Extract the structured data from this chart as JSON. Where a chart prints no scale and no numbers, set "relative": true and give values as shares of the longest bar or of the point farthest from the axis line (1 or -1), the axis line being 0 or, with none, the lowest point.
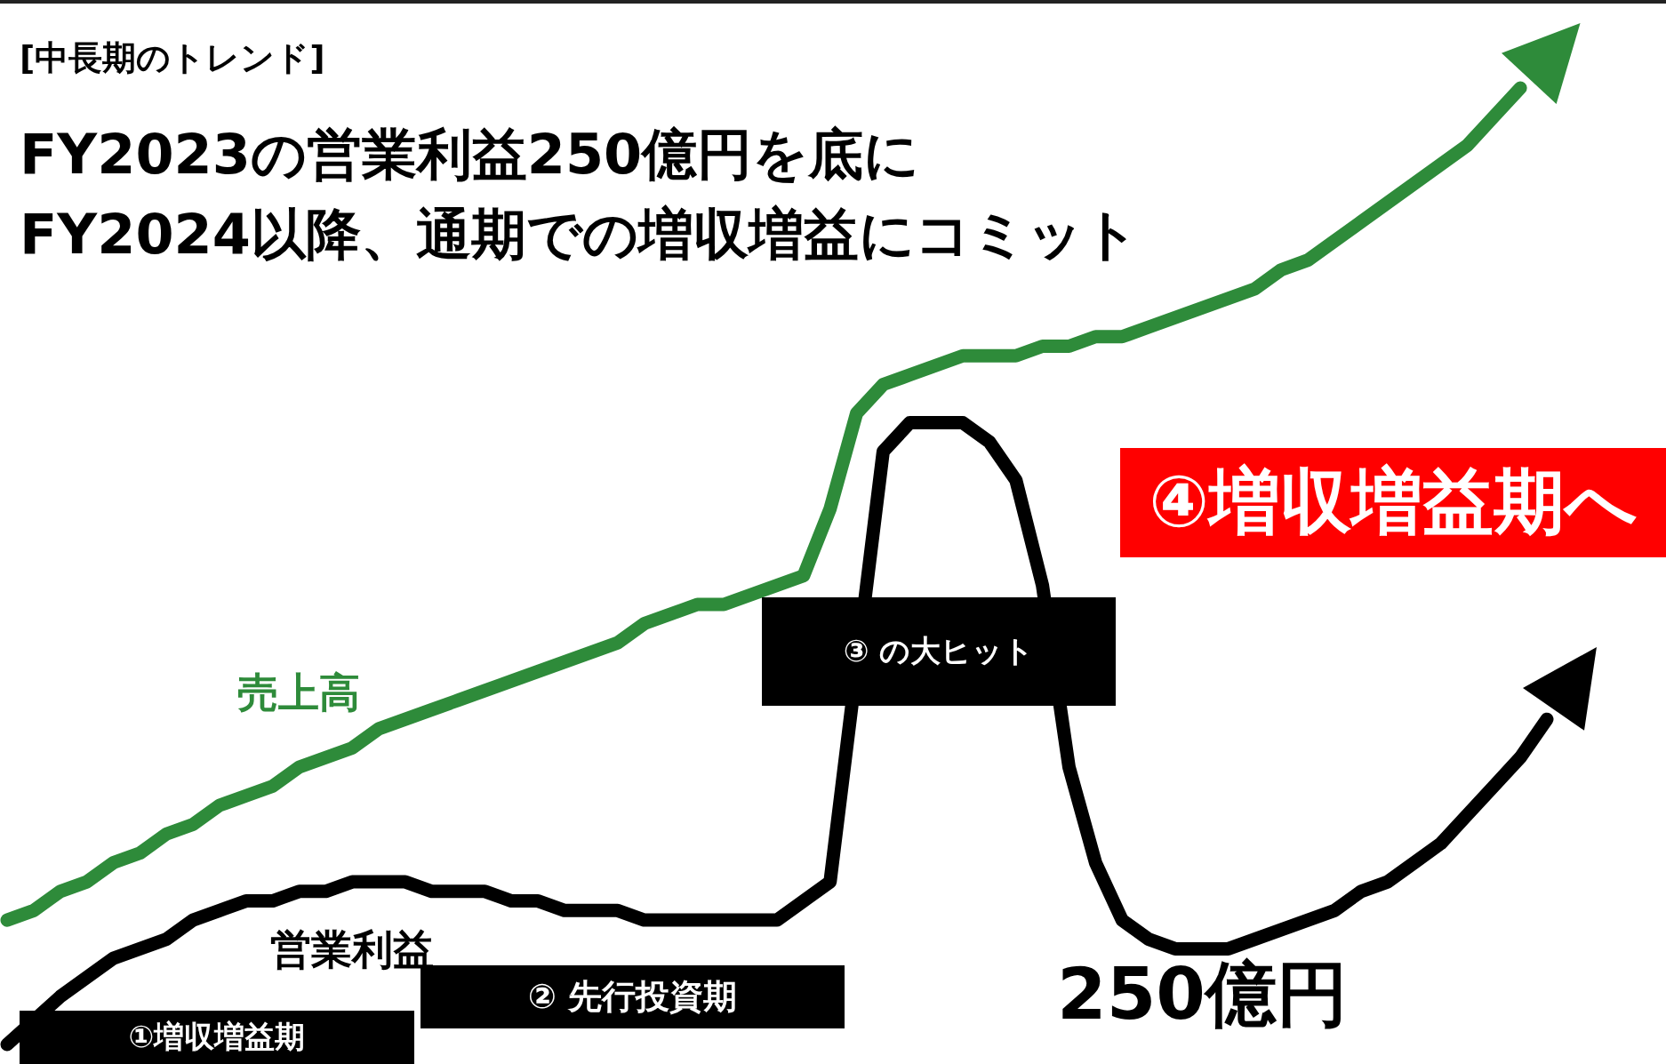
{
  "chart_data": {
    "type": "line",
    "relative": true,
    "subtitle": "[中長期のトレンド]",
    "title": "FY2023の営業利益250億円を底に\nFY2024以降、通期での増収増益にコミット",
    "categories": [
      null,
      null,
      null,
      null,
      null,
      null,
      null,
      null,
      null,
      null,
      null,
      null,
      null,
      null,
      null,
      null,
      null,
      null,
      null,
      null,
      null,
      null,
      null,
      null,
      null,
      null,
      null,
      null,
      null,
      null,
      null,
      null,
      null,
      null,
      null,
      null,
      null,
      null,
      null,
      null,
      null,
      null,
      null,
      null,
      null,
      null,
      null,
      null,
      null,
      null,
      null,
      null,
      null,
      null,
      null,
      null,
      null,
      null,
      null
    ],
    "series": [
      {
        "name": "売上高",
        "color": "#2e8b3a",
        "values": [
          0.13,
          0.14,
          0.16,
          0.17,
          0.19,
          0.2,
          0.22,
          0.23,
          0.25,
          0.26,
          0.27,
          0.29,
          0.3,
          0.31,
          0.33,
          0.34,
          0.35,
          0.36,
          0.37,
          0.38,
          0.39,
          0.4,
          0.41,
          0.42,
          0.44,
          0.45,
          0.46,
          0.46,
          0.47,
          0.48,
          0.49,
          0.56,
          0.66,
          0.69,
          0.7,
          0.71,
          0.72,
          0.72,
          0.72,
          0.73,
          0.73,
          0.74,
          0.74,
          0.75,
          0.76,
          0.77,
          0.78,
          0.79,
          0.81,
          0.82,
          0.84,
          0.86,
          0.88,
          0.9,
          0.92,
          0.94,
          0.97,
          1.0,
          null
        ]
      },
      {
        "name": "営業利益",
        "color": "#000000",
        "values": [
          0,
          null,
          0.05,
          0.07,
          0.09,
          0.1,
          0.11,
          0.13,
          0.14,
          0.15,
          0.15,
          0.16,
          0.16,
          0.17,
          0.17,
          0.17,
          0.16,
          0.16,
          0.16,
          0.15,
          0.15,
          0.14,
          0.14,
          0.14,
          0.13,
          0.13,
          0.13,
          0.13,
          0.13,
          0.13,
          0.15,
          0.17,
          null,
          0.62,
          0.65,
          0.65,
          0.65,
          0.63,
          0.59,
          0.48,
          0.29,
          0.19,
          0.13,
          0.11,
          0.1,
          0.1,
          0.1,
          0.11,
          0.12,
          0.13,
          0.14,
          0.16,
          0.17,
          0.19,
          0.21,
          0.24,
          0.27,
          0.3,
          0.34
        ]
      }
    ],
    "annotations": [
      "①増収増益期",
      "② 先行投資期",
      "③ の大ヒット",
      "④増収増益期へ",
      "250億円"
    ],
    "legend": false,
    "marker": "none",
    "line_style": "solid"
  }
}
